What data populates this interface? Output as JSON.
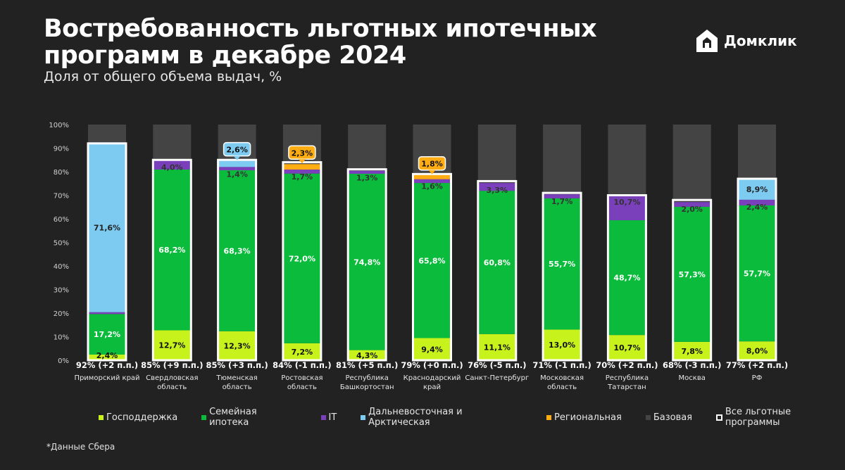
{
  "title": "Востребованность льготных ипотечных программ в декабре 2024",
  "subtitle": "Доля от общего объема выдач, %",
  "logo": {
    "name": "Домклик",
    "icon": "domclick-house-icon"
  },
  "footnote": "*Данные Сбера",
  "colors": {
    "gospodderzhka": "#c8f21b",
    "family": "#0bbc3c",
    "it": "#7a3fba",
    "far_east": "#7ecbf1",
    "regional": "#ffad12",
    "base": "#444444",
    "outline": "#ffffff",
    "background": "#222222"
  },
  "legend": [
    {
      "key": "gospodderzhka",
      "label": "Господдержка"
    },
    {
      "key": "family",
      "label": "Семейная ипотека"
    },
    {
      "key": "it",
      "label": "IT"
    },
    {
      "key": "far_east",
      "label": "Дальневосточная и Арктическая"
    },
    {
      "key": "regional",
      "label": "Региональная"
    },
    {
      "key": "base",
      "label": "Базовая"
    },
    {
      "key": "outline",
      "label": "Все льготные программы"
    }
  ],
  "chart_data": {
    "type": "bar",
    "stacked": true,
    "ylim": [
      0,
      100
    ],
    "yticks": [
      "0%",
      "10%",
      "20%",
      "30%",
      "40%",
      "50%",
      "60%",
      "70%",
      "80%",
      "90%",
      "100%"
    ],
    "categories": [
      "Приморский край",
      "Свердловская область",
      "Тюменская область",
      "Ростовская область",
      "Республика Башкортостан",
      "Краснодарский край",
      "Санкт-Петербург",
      "Московская область",
      "Республика Татарстан",
      "Москва",
      "РФ"
    ],
    "category_lines": [
      [
        "Приморский край"
      ],
      [
        "Свердловская",
        "область"
      ],
      [
        "Тюменская",
        "область"
      ],
      [
        "Ростовская",
        "область"
      ],
      [
        "Республика",
        "Башкортостан"
      ],
      [
        "Краснодарский",
        "край"
      ],
      [
        "Санкт-Петербург"
      ],
      [
        "Московская",
        "область"
      ],
      [
        "Республика",
        "Татарстан"
      ],
      [
        "Москва"
      ],
      [
        "РФ"
      ]
    ],
    "totals": [
      92,
      85,
      85,
      84,
      81,
      79,
      76,
      71,
      70,
      68,
      77
    ],
    "total_labels": [
      "92% (+2 п.п.)",
      "85% (+9 п.п.)",
      "85% (+3 п.п.)",
      "84% (-1 п.п.)",
      "81% (+5 п.п.)",
      "79% (+0 п.п.)",
      "76% (-5 п.п.)",
      "71% (-1 п.п.)",
      "70% (+2 п.п.)",
      "68% (-3 п.п.)",
      "77% (+2 п.п.)"
    ],
    "series": [
      {
        "key": "gospodderzhka",
        "name": "Господдержка",
        "values": [
          2.4,
          12.7,
          12.3,
          7.2,
          4.3,
          9.4,
          11.1,
          13.0,
          10.7,
          7.8,
          8.0
        ],
        "labels": [
          "2,4%",
          "12,7%",
          "12,3%",
          "7,2%",
          "4,3%",
          "9,4%",
          "11,1%",
          "13,0%",
          "10,7%",
          "7,8%",
          "8,0%"
        ]
      },
      {
        "key": "family",
        "name": "Семейная ипотека",
        "values": [
          17.2,
          68.2,
          68.3,
          72.0,
          74.8,
          65.8,
          60.8,
          55.7,
          48.7,
          57.3,
          57.7
        ],
        "labels": [
          "17,2%",
          "68,2%",
          "68,3%",
          "72,0%",
          "74,8%",
          "65,8%",
          "60,8%",
          "55,7%",
          "48,7%",
          "57,3%",
          "57,7%"
        ]
      },
      {
        "key": "it",
        "name": "IT",
        "values": [
          0.8,
          4.0,
          1.4,
          1.7,
          1.3,
          1.6,
          3.3,
          1.7,
          10.7,
          2.0,
          2.4
        ],
        "labels": [
          "",
          "4,0%",
          "1,4%",
          "1,7%",
          "1,3%",
          "1,6%",
          "3,3%",
          "1,7%",
          "10,7%",
          "2,0%",
          "2,4%"
        ]
      },
      {
        "key": "far_east",
        "name": "Дальневосточная и Арктическая",
        "values": [
          71.6,
          0,
          2.6,
          0,
          0,
          0,
          0,
          0,
          0,
          0,
          8.9
        ],
        "labels": [
          "71,6%",
          "",
          "2,6%",
          "",
          "",
          "",
          "",
          "",
          "",
          "",
          "8,9%"
        ]
      },
      {
        "key": "regional",
        "name": "Региональная",
        "values": [
          0,
          0,
          0,
          2.3,
          0,
          1.8,
          0,
          0,
          0,
          0,
          0
        ],
        "labels": [
          "",
          "",
          "",
          "2,3%",
          "",
          "1,8%",
          "",
          "",
          "",
          "",
          ""
        ]
      }
    ],
    "callouts": [
      {
        "index": 2,
        "series": "far_east",
        "label": "2,6%"
      },
      {
        "index": 3,
        "series": "regional",
        "label": "2,3%"
      },
      {
        "index": 5,
        "series": "regional",
        "label": "1,8%"
      }
    ]
  }
}
